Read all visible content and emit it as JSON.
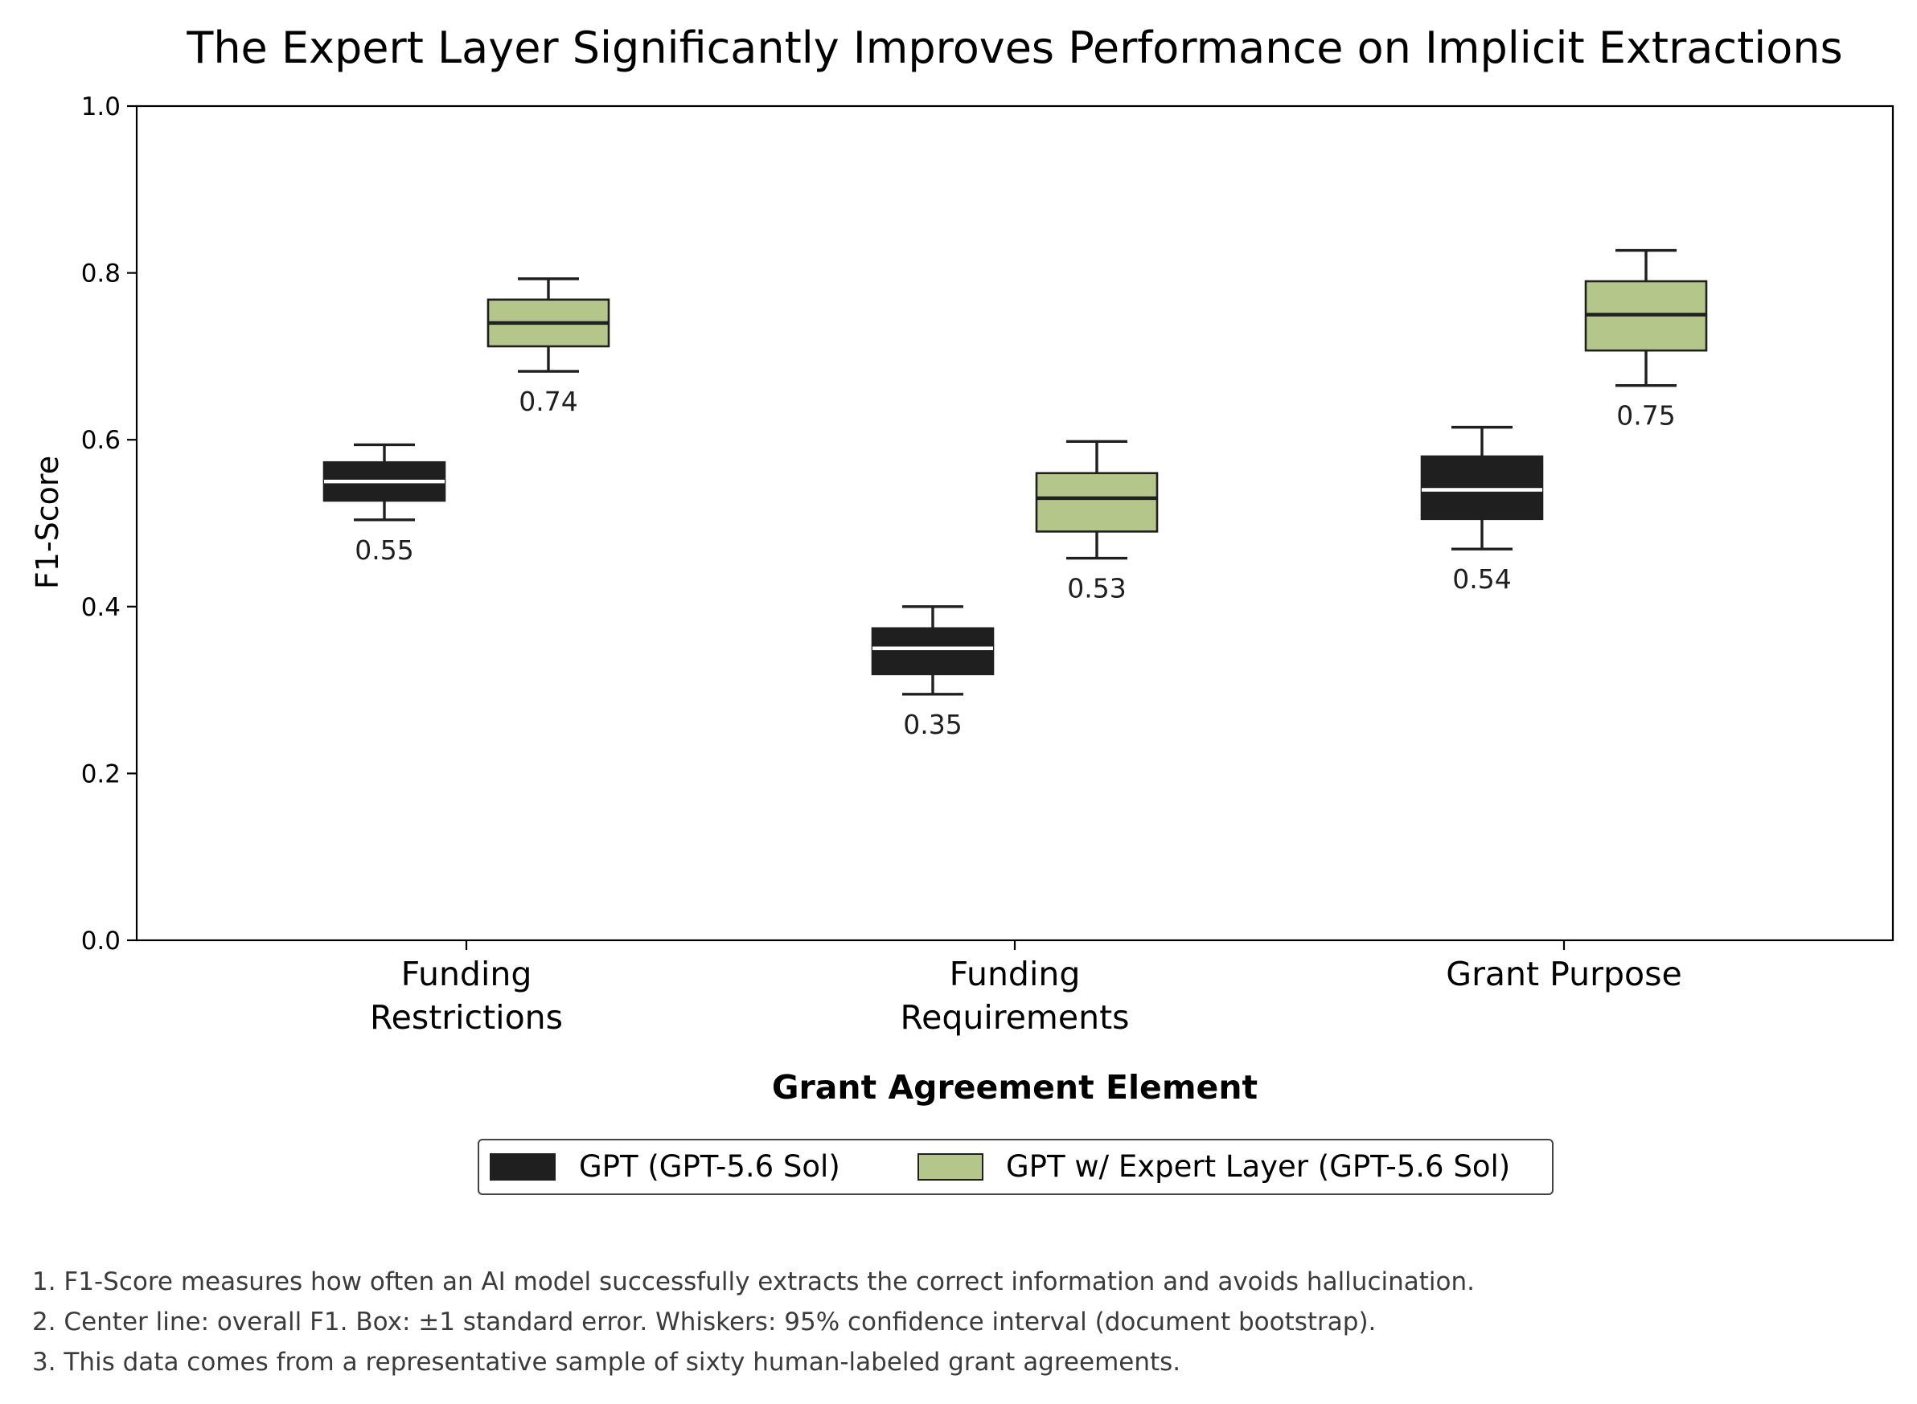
{
  "chart_data": {
    "type": "box",
    "title": "The Expert Layer Significantly Improves Performance on Implicit Extractions",
    "xlabel": "Grant Agreement Element",
    "ylabel": "F1-Score",
    "ylim": [
      0.0,
      1.0
    ],
    "yticks": [
      "0.0",
      "0.2",
      "0.4",
      "0.6",
      "0.8",
      "1.0"
    ],
    "grid": false,
    "legend_position": "bottom-center",
    "categories": [
      [
        "Funding",
        "Restrictions"
      ],
      [
        "Funding",
        "Requirements"
      ],
      [
        "Grant Purpose"
      ]
    ],
    "series": [
      {
        "name": "GPT (GPT-5.6 Sol)",
        "color": "#1f1f1f",
        "boxes": [
          {
            "center": 0.55,
            "box_low": 0.527,
            "box_high": 0.573,
            "whisker_low": 0.504,
            "whisker_high": 0.594,
            "label": "0.55"
          },
          {
            "center": 0.35,
            "box_low": 0.319,
            "box_high": 0.374,
            "whisker_low": 0.295,
            "whisker_high": 0.4,
            "label": "0.35"
          },
          {
            "center": 0.54,
            "box_low": 0.505,
            "box_high": 0.58,
            "whisker_low": 0.469,
            "whisker_high": 0.615,
            "label": "0.54"
          }
        ]
      },
      {
        "name": "GPT w/ Expert Layer (GPT-5.6 Sol)",
        "color": "#b5c68b",
        "boxes": [
          {
            "center": 0.74,
            "box_low": 0.712,
            "box_high": 0.768,
            "whisker_low": 0.682,
            "whisker_high": 0.793,
            "label": "0.74"
          },
          {
            "center": 0.53,
            "box_low": 0.49,
            "box_high": 0.56,
            "whisker_low": 0.458,
            "whisker_high": 0.598,
            "label": "0.53"
          },
          {
            "center": 0.75,
            "box_low": 0.707,
            "box_high": 0.79,
            "whisker_low": 0.665,
            "whisker_high": 0.827,
            "label": "0.75"
          }
        ]
      }
    ]
  },
  "footnotes": [
    "1. F1-Score measures how often an AI model successfully extracts the correct information and avoids hallucination.",
    "2. Center line: overall F1. Box: ±1 standard error. Whiskers: 95% confidence interval (document bootstrap).",
    "3. This data comes from a representative sample of sixty human-labeled grant agreements."
  ]
}
